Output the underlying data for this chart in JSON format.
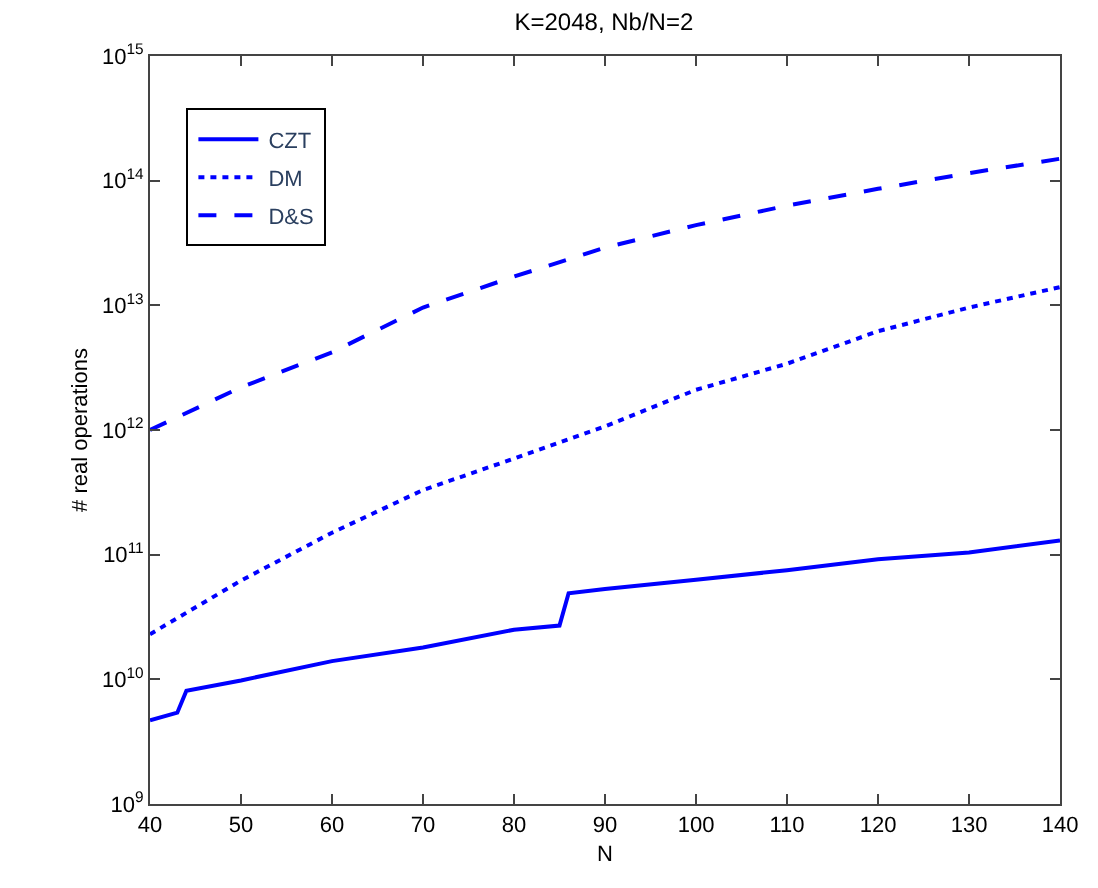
{
  "chart_data": {
    "type": "line",
    "title": "K=2048, Nb/N=2",
    "xlabel": "N",
    "ylabel": "# real operations",
    "log": "y",
    "legend": "top left",
    "marker": "none",
    "xlim": [
      40,
      140
    ],
    "xticks": [
      40,
      50,
      60,
      70,
      80,
      90,
      100,
      110,
      120,
      130,
      140
    ],
    "ylim": [
      1000000000,
      1000000000000000
    ],
    "yticks": [
      {
        "value": 1000000000,
        "label": "10$^{9}$"
      },
      {
        "value": 10000000000,
        "label": "10$^{10}$"
      },
      {
        "value": 100000000000,
        "label": "10$^{11}$"
      },
      {
        "value": 1000000000000,
        "label": "10$^{12}$"
      },
      {
        "value": 10000000000000,
        "label": "10$^{13}$"
      },
      {
        "value": 100000000000000,
        "label": "10$^{14}$"
      },
      {
        "value": 1000000000000000,
        "label": "10$^{15}$"
      }
    ],
    "series": [
      {
        "name": "CZT",
        "color": "#0000ff",
        "line_style": "solid",
        "x": [
          40,
          43,
          44,
          50,
          60,
          70,
          80,
          85,
          86,
          90,
          100,
          110,
          120,
          130,
          140
        ],
        "values": [
          4700000000.0,
          5400000000.0,
          8100000000.0,
          9800000000.0,
          14000000000.0,
          18000000000.0,
          25000000000.0,
          27000000000.0,
          49000000000.0,
          53000000000.0,
          63000000000.0,
          75000000000.0,
          92000000000.0,
          104000000000.0,
          130000000000.0
        ]
      },
      {
        "name": "DM",
        "color": "#0000ff",
        "line_style": "dotted",
        "x": [
          40,
          50,
          60,
          70,
          80,
          90,
          100,
          110,
          120,
          130,
          140
        ],
        "values": [
          23000000000.0,
          62000000000.0,
          150000000000.0,
          330000000000.0,
          590000000000.0,
          1070000000000.0,
          2100000000000.0,
          3400000000000.0,
          6200000000000.0,
          9600000000000.0,
          14000000000000.0
        ]
      },
      {
        "name": "D&S",
        "color": "#0000ff",
        "line_style": "dashed",
        "x": [
          40,
          50,
          60,
          70,
          80,
          90,
          100,
          110,
          120,
          130,
          140
        ],
        "values": [
          1000000000000.0,
          2200000000000.0,
          4200000000000.0,
          9600000000000.0,
          17000000000000.0,
          29000000000000.0,
          44000000000000.0,
          63000000000000.0,
          86000000000000.0,
          115000000000000.0,
          150000000000000.0
        ]
      }
    ]
  }
}
